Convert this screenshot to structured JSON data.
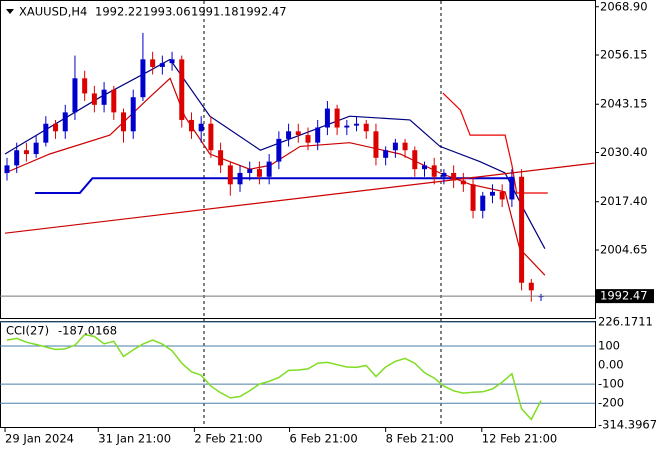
{
  "chart_data": [
    {
      "type": "candlestick",
      "symbol": "XAUUSD,H4",
      "open": [
        2025,
        2027,
        2031,
        2030,
        2033,
        2038,
        2036,
        2041,
        2050,
        2046,
        2043,
        2047,
        2041,
        2036,
        2045,
        2055,
        2053,
        2054,
        2055,
        2039,
        2036,
        2038,
        2031,
        2027,
        2022,
        2025,
        2026,
        2024,
        2028,
        2034,
        2036,
        2035,
        2033,
        2037,
        2042,
        2037,
        2037.5,
        2038,
        2036,
        2029,
        2031,
        2033,
        2031,
        2026,
        2027,
        2024,
        2025,
        2023,
        2022,
        2015,
        2019,
        2020,
        2018,
        2024,
        1996,
        1992.22
      ],
      "high": [
        2029,
        2033,
        2033,
        2035,
        2040,
        2039,
        2043,
        2056,
        2052,
        2048,
        2049,
        2048,
        2042,
        2047,
        2062,
        2057,
        2056,
        2057,
        2056,
        2041,
        2040,
        2040,
        2033,
        2028,
        2027,
        2028,
        2028,
        2030,
        2036,
        2038,
        2038,
        2037,
        2039,
        2044,
        2043,
        2039,
        2040,
        2039,
        2038,
        2032,
        2034,
        2034,
        2032,
        2028,
        2029,
        2026,
        2027,
        2025,
        2024,
        2020,
        2022,
        2022,
        2026,
        2026,
        1997,
        1993.06
      ],
      "low": [
        2023,
        2025,
        2028,
        2029,
        2032,
        2034,
        2034,
        2039,
        2044,
        2041,
        2041,
        2039,
        2033,
        2034,
        2044,
        2051,
        2051,
        2052,
        2037,
        2034,
        2033,
        2029,
        2025,
        2019,
        2020,
        2023,
        2022,
        2022,
        2026,
        2032,
        2033,
        2031,
        2031,
        2035,
        2035,
        2035,
        2036,
        2034,
        2027,
        2027,
        2029,
        2029,
        2024,
        2024,
        2022,
        2022,
        2021,
        2020,
        2013,
        2013,
        2017,
        2016,
        2016,
        1994,
        1991,
        1991.18
      ],
      "close": [
        2027,
        2031,
        2030,
        2033,
        2038,
        2036,
        2041,
        2050,
        2046,
        2043,
        2047,
        2041,
        2036,
        2045,
        2055,
        2053,
        2054,
        2055,
        2039,
        2036,
        2038,
        2031,
        2027,
        2022,
        2025,
        2026,
        2024,
        2028,
        2034,
        2036,
        2035,
        2033,
        2037,
        2042,
        2037,
        2037.5,
        2038,
        2036,
        2029,
        2031,
        2033,
        2031,
        2026,
        2027,
        2024,
        2025,
        2023,
        2022,
        2015,
        2019,
        2020,
        2018,
        2024,
        1996,
        1994,
        1992.47
      ],
      "up_color": "#0000cc",
      "down_color": "#dd0000",
      "lines": [
        {
          "color": "#000080",
          "x": [
            -0.2,
            9.6,
            14.7,
            16.8,
            20.9,
            26.1,
            30.2,
            35.3,
            41.5,
            44.6,
            48.7,
            51.3,
            53.3,
            55.4
          ],
          "values": [
            2030,
            2045,
            2052,
            2055,
            2040,
            2031,
            2035,
            2040,
            2039,
            2032,
            2028,
            2025,
            2015,
            2005
          ]
        },
        {
          "color": "#cc0000",
          "x": [
            -0.2,
            4.4,
            10.6,
            14.7,
            16.8,
            18.3,
            20.9,
            25,
            27.1,
            30.2,
            35.3,
            40.5,
            44.6,
            47.7,
            51.3,
            52.8,
            55.4
          ],
          "values": [
            2025,
            2030,
            2035,
            2045,
            2050,
            2040,
            2030,
            2026,
            2027,
            2032,
            2033,
            2030,
            2025,
            2022,
            2020,
            2005,
            1998
          ]
        },
        {
          "color": "#0000cc",
          "x": [
            2.9,
            7.5,
            8.8,
            51.8
          ],
          "values": [
            2019.7,
            2019.7,
            2023.6,
            2023.6
          ]
        },
        {
          "color": "#cc0000",
          "x": [
            -0.2,
            60.5
          ],
          "values": [
            2009.1,
            2027.6
          ]
        },
        {
          "color": "#ee0000",
          "x": [
            44.9,
            46.7,
            47.7,
            51.3,
            52,
            52.5,
            55.7
          ],
          "values": [
            2046.1,
            2041.6,
            2035,
            2035,
            2027.1,
            2019.7,
            2019.7
          ]
        }
      ],
      "xlim": [
        -0.72,
        60.56
      ],
      "ylim": [
        1986.69,
        2070.68
      ],
      "yticks": [
        {
          "value": 2068.9,
          "label": "2068.90"
        },
        2056.15,
        2043.15,
        {
          "value": 2030.4,
          "label": "2030.40"
        },
        {
          "value": 2017.4,
          "label": "2017.40"
        },
        2004.65
      ],
      "xticks": [
        {
          "value": -0.2,
          "label": "29 Jan 2024"
        },
        {
          "value": 9.4,
          "label": "31 Jan 21:00"
        },
        {
          "value": 19.3,
          "label": "2 Feb 21:00"
        },
        {
          "value": 29.1,
          "label": "6 Feb 21:00"
        },
        {
          "value": 39.0,
          "label": "8 Feb 21:00"
        },
        {
          "value": 48.9,
          "label": "12 Feb 21:00"
        }
      ]
    },
    {
      "type": "line",
      "label": "CCI(27)",
      "color": "#7fdd22",
      "values": [
        131,
        140,
        120,
        108,
        95,
        82,
        85,
        105,
        160,
        150,
        112,
        125,
        45,
        80,
        110,
        131,
        110,
        75,
        10,
        -35,
        -53,
        -110,
        -145,
        -172,
        -165,
        -135,
        -100,
        -85,
        -65,
        -28,
        -26,
        -20,
        10,
        14,
        2,
        -10,
        -12,
        -2,
        -60,
        -10,
        20,
        35,
        10,
        -40,
        -68,
        -110,
        -135,
        -147,
        -143,
        -140,
        -125,
        -90,
        -45,
        -230,
        -285,
        -187.0168
      ],
      "ylim": [
        -314.3967,
        226.1711
      ],
      "yticks": [
        226.1711,
        100,
        {
          "value": 0,
          "label": "0.00"
        },
        -100,
        -200,
        -314.3967
      ]
    }
  ]
}
